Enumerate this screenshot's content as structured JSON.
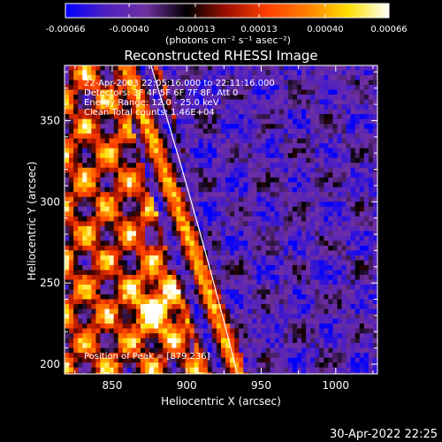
{
  "chart_data": {
    "type": "heatmap",
    "title": "Reconstructed RHESSI Image",
    "xlabel": "Heliocentric X (arcsec)",
    "ylabel": "Heliocentric Y (arcsec)",
    "xlim": [
      818,
      1028
    ],
    "ylim": [
      194,
      384
    ],
    "x_ticks": [
      850,
      900,
      950,
      1000
    ],
    "y_ticks": [
      200,
      250,
      300,
      350
    ],
    "colorbar": {
      "range": [
        -0.00066,
        0.00066
      ],
      "tick_values": [
        -0.00066,
        -0.0004,
        -0.00013,
        0.00013,
        0.0004,
        0.00066
      ],
      "tick_labels": [
        "-0.00066",
        "-0.00040",
        "-0.00013",
        "0.00013",
        "0.00040",
        "0.00066"
      ],
      "units_label": "(photons cm⁻² s⁻¹ asec⁻²)"
    },
    "annotations": [
      "22-Apr-2003 22:05:16.000 to 22:11:16.000",
      "Detectors: 3F 4F 5F 6F 7F 8F, Att 0",
      "Energy Range: 12.0 - 25.0 keV",
      "Clean     Total counts: 1.46E+04"
    ],
    "peak_label": "Position of Peak = [879,236]",
    "peak_position": [
      879,
      236
    ],
    "limb_curve": [
      [
        876,
        384
      ],
      [
        934,
        194
      ]
    ],
    "color_scale": [
      "#0000ff",
      "#5020c0",
      "#7030a0",
      "#000000",
      "#a01000",
      "#ff4000",
      "#ff8000",
      "#ffe000",
      "#ffffff"
    ]
  },
  "timestamp": "30-Apr-2022 22:25"
}
